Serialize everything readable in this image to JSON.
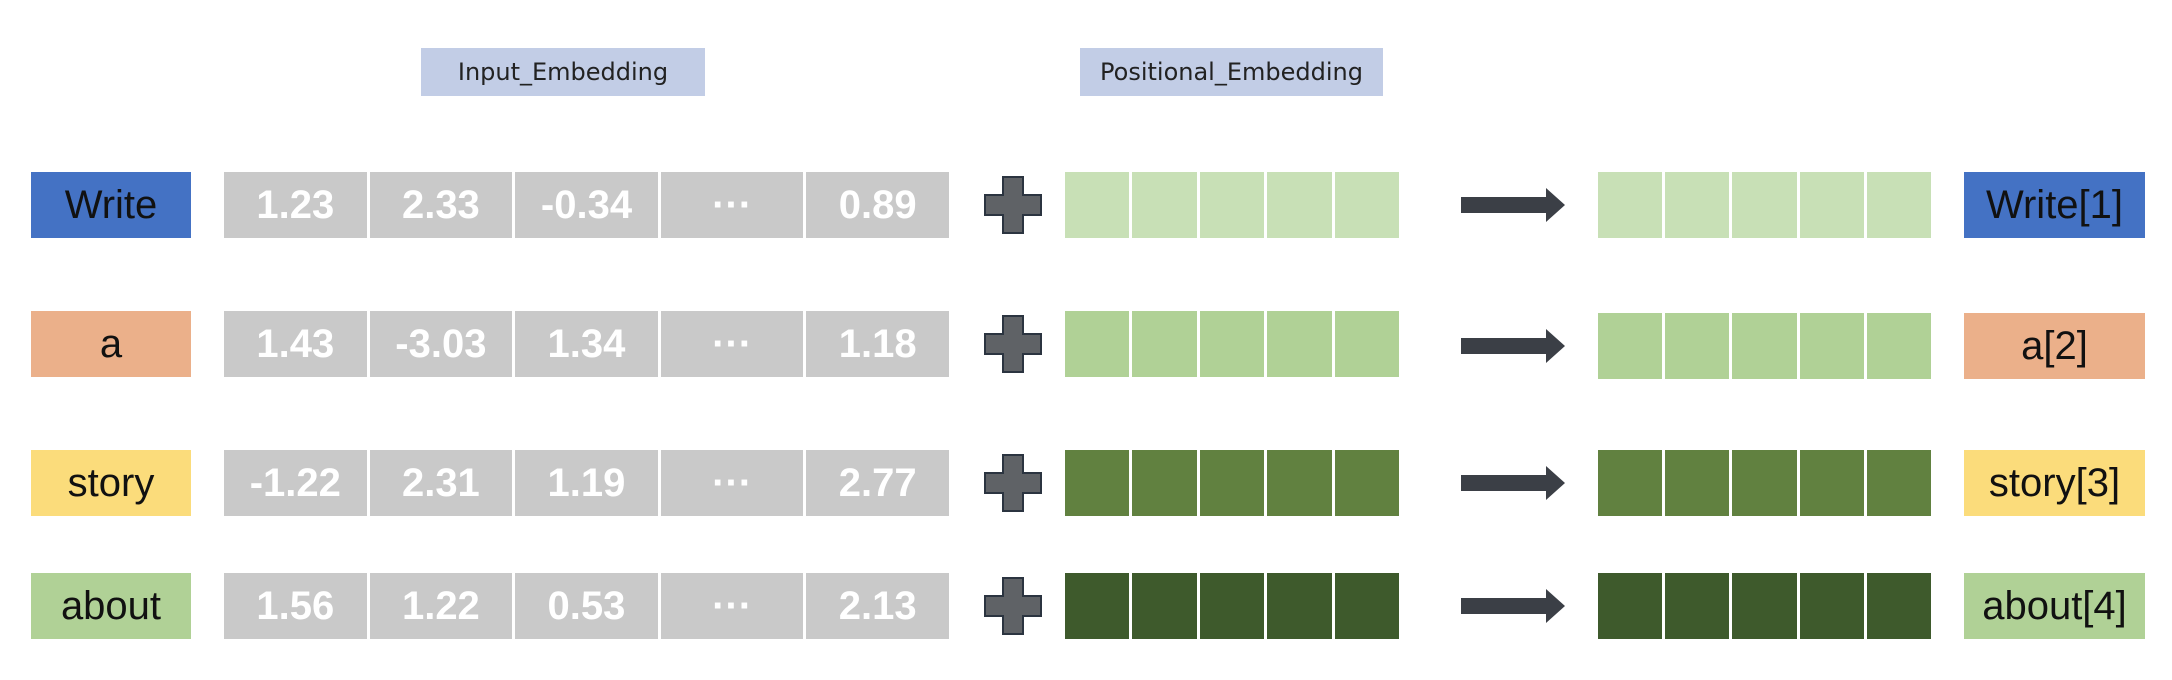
{
  "headers": {
    "input_embedding": "Input_Embedding",
    "positional_embedding": "Positional_Embedding"
  },
  "rows": [
    {
      "token": "Write",
      "token_color": "#4472c4",
      "embedding": [
        "1.23",
        "2.33",
        "-0.34",
        "···",
        "0.89"
      ],
      "positional_color": "#c8e0b6",
      "result": "Write[1]",
      "result_color": "#4472c4"
    },
    {
      "token": "a",
      "token_color": "#ebb08a",
      "embedding": [
        "1.43",
        "-3.03",
        "1.34",
        "···",
        "1.18"
      ],
      "positional_color": "#b0d196",
      "result": "a[2]",
      "result_color": "#ebb08a"
    },
    {
      "token": "story",
      "token_color": "#fbdc7b",
      "embedding": [
        "-1.22",
        "2.31",
        "1.19",
        "···",
        "2.77"
      ],
      "positional_color": "#618140",
      "result": "story[3]",
      "result_color": "#fbdc7b"
    },
    {
      "token": "about",
      "token_color": "#b0d196",
      "embedding": [
        "1.56",
        "1.22",
        "0.53",
        "···",
        "2.13"
      ],
      "positional_color": "#3e5a2c",
      "result": "about[4]",
      "result_color": "#b0d196"
    }
  ],
  "colors": {
    "header_bg": "#c2cde6",
    "embedding_cell": "#c9c9c9",
    "plus_fill": "#5f6266",
    "arrow_fill": "#3b3f46"
  },
  "icons": {
    "plus": "plus-icon",
    "arrow": "arrow-right-icon"
  }
}
